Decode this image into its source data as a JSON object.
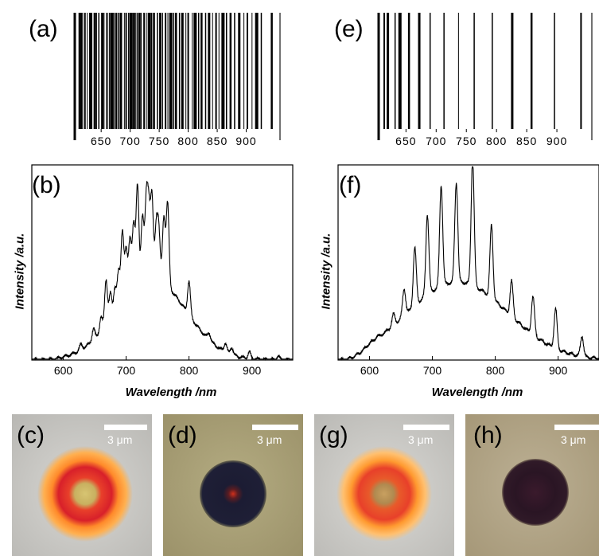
{
  "panels": {
    "a": "(a)",
    "b": "(b)",
    "c": "(c)",
    "d": "(d)",
    "e": "(e)",
    "f": "(f)",
    "g": "(g)",
    "h": "(h)"
  },
  "barcode_ticks": [
    "650",
    "700",
    "750",
    "800",
    "850",
    "900"
  ],
  "scale_bar": {
    "label": "3 μm"
  },
  "photo_colors": {
    "c_bg": "#c9c8c4",
    "d_bg": "#a8a075",
    "g_bg": "#cbcac6",
    "h_bg": "#b1a58a",
    "ring_orange": "#ff8a2a",
    "ring_red": "#e0302a",
    "core_yellow": "#c9b86a",
    "dark_disk": "#1c1c33",
    "dark_disk_h": "#2a1524",
    "core_red": "#d0301c"
  },
  "chart_data": [
    {
      "type": "barcode",
      "panel": "(a)",
      "tick_labels": [
        "650",
        "700",
        "750",
        "800",
        "850",
        "900"
      ],
      "x_range": [
        610,
        950
      ],
      "lines": [
        612,
        615,
        618,
        622,
        626,
        632,
        638,
        641,
        646,
        652,
        655,
        660,
        664,
        668,
        672,
        676,
        680,
        684,
        690,
        693,
        697,
        701,
        705,
        708,
        712,
        716,
        719,
        724,
        728,
        733,
        737,
        741,
        747,
        752,
        756,
        761,
        765,
        770,
        775,
        779,
        785,
        790,
        796,
        800,
        807,
        812,
        818,
        823,
        830,
        836,
        842,
        848,
        853,
        860,
        866,
        873,
        880,
        888,
        896,
        902,
        910,
        918,
        926,
        944
      ]
    },
    {
      "type": "line",
      "panel": "(b)",
      "xlabel": "Wavelength /nm",
      "ylabel": "Intensity /a.u.",
      "xlim": [
        550,
        965
      ],
      "ylim": [
        0,
        1
      ],
      "x_ticks": [
        600,
        700,
        800,
        900
      ],
      "peaks": [
        [
          628,
          0.07
        ],
        [
          648,
          0.14
        ],
        [
          660,
          0.19
        ],
        [
          668,
          0.38
        ],
        [
          675,
          0.3
        ],
        [
          682,
          0.32
        ],
        [
          688,
          0.4
        ],
        [
          694,
          0.6
        ],
        [
          700,
          0.5
        ],
        [
          706,
          0.55
        ],
        [
          712,
          0.62
        ],
        [
          718,
          0.82
        ],
        [
          726,
          0.66
        ],
        [
          732,
          0.72
        ],
        [
          736,
          0.68
        ],
        [
          741,
          0.76
        ],
        [
          748,
          0.6
        ],
        [
          752,
          0.58
        ],
        [
          760,
          0.65
        ],
        [
          766,
          0.73
        ],
        [
          800,
          0.36
        ],
        [
          832,
          0.12
        ],
        [
          858,
          0.08
        ],
        [
          868,
          0.06
        ],
        [
          896,
          0.04
        ],
        [
          942,
          0.02
        ]
      ]
    },
    {
      "type": "barcode",
      "panel": "(e)",
      "tick_labels": [
        "650",
        "700",
        "750",
        "800",
        "850",
        "900"
      ],
      "x_range": [
        610,
        950
      ],
      "lines": [
        614,
        620,
        632,
        640,
        655,
        672,
        690,
        713,
        737,
        763,
        793,
        826,
        858,
        896,
        940
      ]
    },
    {
      "type": "line",
      "panel": "(f)",
      "xlabel": "Wavelength /nm",
      "ylabel": "Intensity /a.u.",
      "xlim": [
        550,
        965
      ],
      "ylim": [
        0,
        1
      ],
      "x_ticks": [
        600,
        700,
        800,
        900
      ],
      "peaks": [
        [
          612,
          0.1
        ],
        [
          622,
          0.11
        ],
        [
          638,
          0.2
        ],
        [
          655,
          0.32
        ],
        [
          672,
          0.52
        ],
        [
          692,
          0.68
        ],
        [
          714,
          0.82
        ],
        [
          738,
          0.83
        ],
        [
          764,
          0.96
        ],
        [
          794,
          0.63
        ],
        [
          826,
          0.36
        ],
        [
          860,
          0.3
        ],
        [
          896,
          0.25
        ],
        [
          938,
          0.12
        ]
      ]
    }
  ]
}
